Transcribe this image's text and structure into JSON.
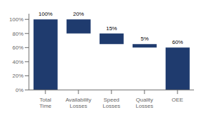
{
  "chart_data": {
    "type": "waterfall",
    "categories": [
      "Total\nTime",
      "Availability\nLosses",
      "Speed\nLosses",
      "Quality\nLosses",
      "OEE"
    ],
    "bottoms": [
      0,
      80,
      65,
      60,
      0
    ],
    "values": [
      100,
      20,
      15,
      5,
      60
    ],
    "value_labels": [
      "100%",
      "20%",
      "15%",
      "5%",
      "60%"
    ],
    "data_labels": true,
    "color": "#1F3B6E",
    "ylim": [
      0,
      108
    ],
    "yticks": [
      {
        "value": 0,
        "label": "0%"
      },
      {
        "value": 20,
        "label": "20%"
      },
      {
        "value": 40,
        "label": "40%"
      },
      {
        "value": 60,
        "label": "60%"
      },
      {
        "value": 80,
        "label": "80%"
      },
      {
        "value": 100,
        "label": "100%"
      }
    ],
    "grid": false
  }
}
